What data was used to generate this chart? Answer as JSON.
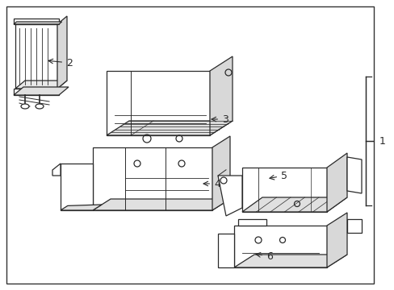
{
  "background_color": "#ffffff",
  "line_color": "#2a2a2a",
  "border_color": "#2a2a2a",
  "fig_width": 4.89,
  "fig_height": 3.6,
  "dpi": 100
}
